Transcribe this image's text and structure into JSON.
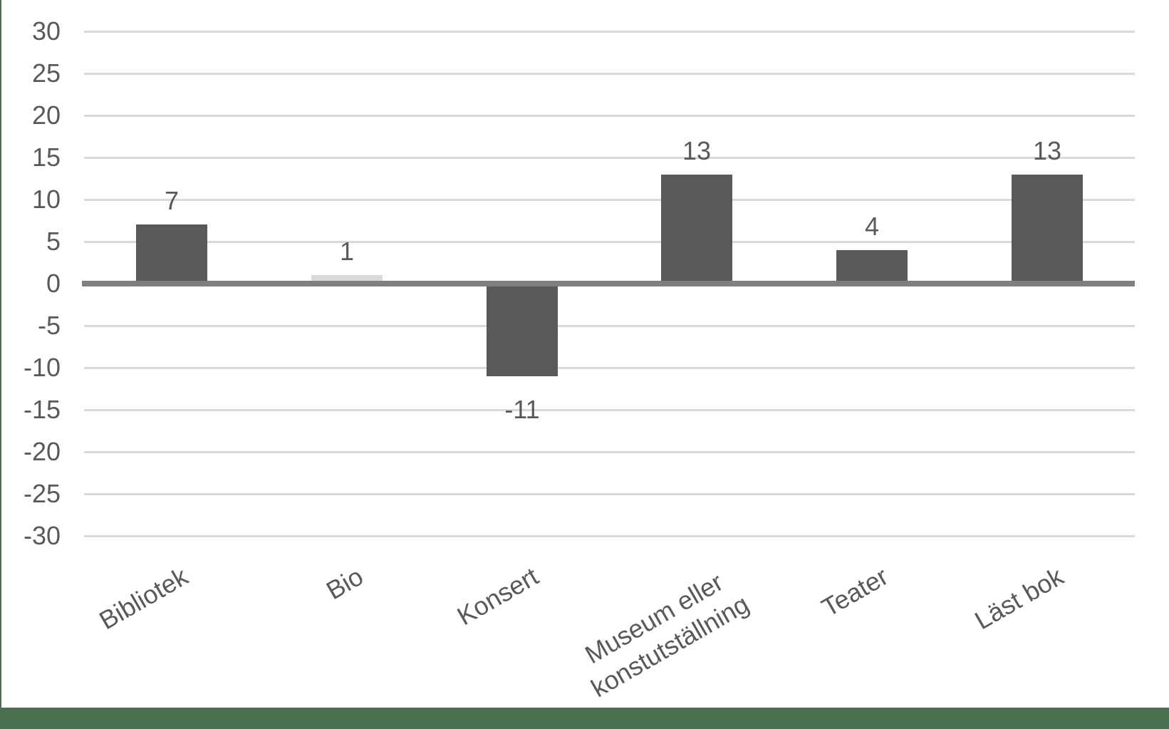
{
  "chart_data": {
    "type": "bar",
    "categories": [
      "Bibliotek",
      "Bio",
      "Konsert",
      "Museum eller\nkonstutställning",
      "Teater",
      "Läst bok"
    ],
    "values": [
      7,
      1,
      -11,
      13,
      4,
      13
    ],
    "data_labels": [
      "7",
      "1",
      "-11",
      "13",
      "4",
      "13"
    ],
    "bar_colors": [
      "#595959",
      "#d9d9d9",
      "#595959",
      "#595959",
      "#595959",
      "#595959"
    ],
    "title": "",
    "xlabel": "",
    "ylabel": "",
    "ylim": [
      -30,
      30
    ],
    "y_ticks": [
      30,
      25,
      20,
      15,
      10,
      5,
      0,
      -5,
      -10,
      -15,
      -20,
      -25,
      -30
    ],
    "grid": true,
    "legend": "none",
    "category_label_rotation_deg": -30
  },
  "colors": {
    "bar_default": "#595959",
    "bar_light": "#d9d9d9",
    "gridline": "#d9d9d9",
    "axis_line": "#7f7f7f",
    "text": "#595959",
    "accent_green": "#4a7050",
    "background": "#ffffff"
  }
}
